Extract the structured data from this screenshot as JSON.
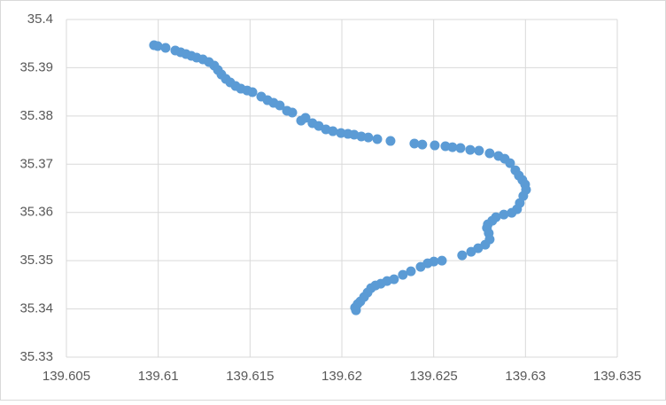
{
  "chart_data": {
    "type": "scatter",
    "color": "#5b9bd5",
    "grid": true,
    "xlim": [
      139.605,
      139.635
    ],
    "xticks": [
      139.605,
      139.61,
      139.615,
      139.62,
      139.625,
      139.63,
      139.635
    ],
    "ylim": [
      35.33,
      35.4
    ],
    "yticks": [
      35.33,
      35.34,
      35.35,
      35.36,
      35.37,
      35.38,
      35.39,
      35.4
    ],
    "x": [
      139.60977,
      139.60997,
      139.6104,
      139.61093,
      139.61122,
      139.61151,
      139.6118,
      139.61209,
      139.61243,
      139.61276,
      139.61305,
      139.61325,
      139.61344,
      139.61368,
      139.61392,
      139.61421,
      139.6145,
      139.61484,
      139.61513,
      139.61561,
      139.61595,
      139.61628,
      139.61662,
      139.61701,
      139.6173,
      139.61778,
      139.61802,
      139.6184,
      139.61874,
      139.61913,
      139.61951,
      139.61995,
      139.62033,
      139.62067,
      139.62106,
      139.62144,
      139.62193,
      139.62265,
      139.62395,
      139.62438,
      139.62506,
      139.62564,
      139.62602,
      139.62646,
      139.62699,
      139.62747,
      139.62805,
      139.62853,
      139.62887,
      139.62916,
      139.62945,
      139.62964,
      139.62983,
      139.62998,
      139.63003,
      139.62988,
      139.62969,
      139.62954,
      139.62925,
      139.62882,
      139.62839,
      139.62819,
      139.62795,
      139.6279,
      139.628,
      139.62805,
      139.62781,
      139.62742,
      139.62704,
      139.62655,
      139.62545,
      139.62501,
      139.62467,
      139.62429,
      139.62376,
      139.62332,
      139.62284,
      139.62246,
      139.62212,
      139.62183,
      139.62159,
      139.6214,
      139.62121,
      139.62101,
      139.62086,
      139.62072,
      139.62077
    ],
    "y": [
      35.39467,
      35.39449,
      35.39412,
      35.39357,
      35.3932,
      35.39283,
      35.39246,
      35.3921,
      35.39173,
      35.39118,
      35.39044,
      35.38952,
      35.3886,
      35.38768,
      35.38695,
      35.38621,
      35.38566,
      35.38529,
      35.38493,
      35.38401,
      35.38327,
      35.38272,
      35.38217,
      35.38107,
      35.3807,
      35.37904,
      35.3796,
      35.3785,
      35.37794,
      35.37721,
      35.37684,
      35.37647,
      35.37629,
      35.37611,
      35.37574,
      35.37555,
      35.37519,
      35.37482,
      35.37427,
      35.37408,
      35.3739,
      35.37372,
      35.37353,
      35.37335,
      35.37298,
      35.3728,
      35.37225,
      35.3717,
      35.37114,
      35.37022,
      35.36875,
      35.36765,
      35.36673,
      35.36581,
      35.36471,
      35.36342,
      35.36195,
      35.36067,
      35.35993,
      35.35956,
      35.35901,
      35.35828,
      35.35754,
      35.3568,
      35.3557,
      35.35442,
      35.35331,
      35.35258,
      35.35184,
      35.35111,
      35.35001,
      35.34982,
      35.34945,
      35.34872,
      35.3478,
      35.34706,
      35.34615,
      35.34578,
      35.34523,
      35.34486,
      35.34431,
      35.34339,
      35.34247,
      35.34155,
      35.341,
      35.34027,
      35.33971
    ]
  }
}
